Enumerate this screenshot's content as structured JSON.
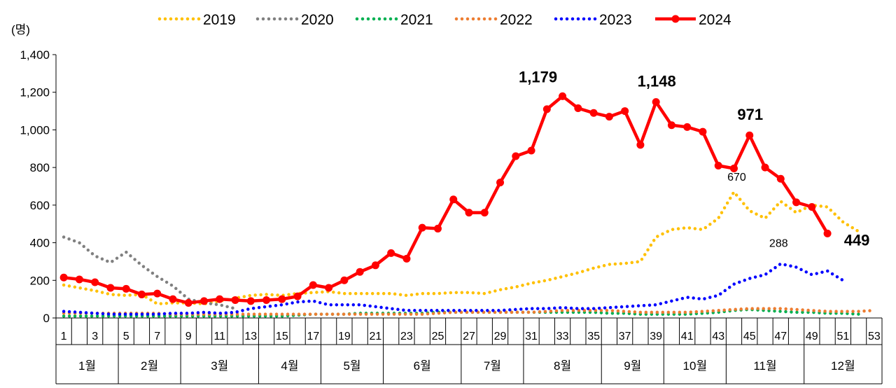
{
  "chart_data": {
    "type": "line",
    "ylabel": "(명)",
    "ylim": [
      0,
      1400
    ],
    "yticks": [
      "0",
      "200",
      "400",
      "600",
      "800",
      "1,000",
      "1,200",
      "1,400"
    ],
    "ytick_values": [
      0,
      200,
      400,
      600,
      800,
      1000,
      1200,
      1400
    ],
    "x": [
      1,
      2,
      3,
      4,
      5,
      6,
      7,
      8,
      9,
      10,
      11,
      12,
      13,
      14,
      15,
      16,
      17,
      18,
      19,
      20,
      21,
      22,
      23,
      24,
      25,
      26,
      27,
      28,
      29,
      30,
      31,
      32,
      33,
      34,
      35,
      36,
      37,
      38,
      39,
      40,
      41,
      42,
      43,
      44,
      45,
      46,
      47,
      48,
      49,
      50,
      51,
      52,
      53
    ],
    "xtick_labels": [
      "1",
      "3",
      "5",
      "7",
      "9",
      "11",
      "13",
      "15",
      "17",
      "19",
      "21",
      "23",
      "25",
      "27",
      "29",
      "31",
      "33",
      "35",
      "37",
      "39",
      "41",
      "43",
      "45",
      "47",
      "49",
      "51",
      "53"
    ],
    "xtick_values": [
      1,
      3,
      5,
      7,
      9,
      11,
      13,
      15,
      17,
      19,
      21,
      23,
      25,
      27,
      29,
      31,
      33,
      35,
      37,
      39,
      41,
      43,
      45,
      47,
      49,
      51,
      53
    ],
    "months": [
      {
        "label": "1월",
        "from": 1,
        "to": 4
      },
      {
        "label": "2월",
        "from": 5,
        "to": 8
      },
      {
        "label": "3월",
        "from": 9,
        "to": 13
      },
      {
        "label": "4월",
        "from": 14,
        "to": 17
      },
      {
        "label": "5월",
        "from": 18,
        "to": 21
      },
      {
        "label": "6월",
        "from": 22,
        "to": 26
      },
      {
        "label": "7월",
        "from": 27,
        "to": 30
      },
      {
        "label": "8월",
        "from": 31,
        "to": 35
      },
      {
        "label": "9월",
        "from": 36,
        "to": 39
      },
      {
        "label": "10월",
        "from": 40,
        "to": 43
      },
      {
        "label": "11월",
        "from": 44,
        "to": 48
      },
      {
        "label": "12월",
        "from": 49,
        "to": 53
      }
    ],
    "legend_position": "top",
    "grid": false,
    "series": [
      {
        "name": "2019",
        "color": "#FFC000",
        "style": "dotted",
        "values": [
          175,
          160,
          145,
          125,
          120,
          125,
          75,
          80,
          80,
          75,
          90,
          105,
          120,
          125,
          120,
          130,
          135,
          140,
          130,
          130,
          130,
          130,
          120,
          130,
          130,
          135,
          135,
          130,
          150,
          165,
          185,
          200,
          220,
          240,
          265,
          285,
          290,
          300,
          430,
          470,
          480,
          470,
          530,
          670,
          570,
          530,
          620,
          560,
          600,
          590,
          510,
          460,
          null
        ]
      },
      {
        "name": "2020",
        "color": "#808080",
        "style": "dotted",
        "values": [
          430,
          400,
          330,
          295,
          350,
          280,
          220,
          170,
          100,
          80,
          70,
          50,
          null,
          null,
          null,
          null,
          null,
          null,
          null,
          null,
          null,
          null,
          null,
          null,
          null,
          null,
          null,
          null,
          null,
          null,
          null,
          null,
          null,
          null,
          null,
          null,
          null,
          null,
          null,
          null,
          null,
          null,
          null,
          null,
          null,
          null,
          null,
          null,
          null,
          null,
          null,
          null,
          null
        ]
      },
      {
        "name": "2021",
        "color": "#00B050",
        "style": "dotted",
        "values": [
          10,
          10,
          10,
          10,
          10,
          10,
          10,
          10,
          10,
          10,
          10,
          10,
          10,
          10,
          10,
          15,
          20,
          20,
          20,
          25,
          25,
          25,
          25,
          25,
          30,
          30,
          30,
          30,
          30,
          30,
          30,
          30,
          30,
          30,
          30,
          25,
          25,
          20,
          20,
          20,
          20,
          25,
          30,
          40,
          45,
          40,
          35,
          30,
          30,
          25,
          25,
          20,
          null
        ]
      },
      {
        "name": "2022",
        "color": "#ED7D31",
        "style": "dotted",
        "values": [
          25,
          25,
          25,
          25,
          25,
          25,
          25,
          20,
          20,
          20,
          20,
          20,
          20,
          20,
          20,
          20,
          20,
          20,
          20,
          20,
          20,
          20,
          20,
          20,
          25,
          30,
          30,
          30,
          30,
          30,
          30,
          35,
          40,
          40,
          40,
          40,
          35,
          30,
          30,
          30,
          30,
          35,
          40,
          45,
          50,
          50,
          50,
          45,
          40,
          35,
          35,
          35,
          40
        ]
      },
      {
        "name": "2023",
        "color": "#0000FF",
        "style": "dotted",
        "values": [
          35,
          30,
          25,
          20,
          20,
          20,
          20,
          25,
          25,
          30,
          25,
          30,
          50,
          60,
          70,
          85,
          90,
          70,
          70,
          70,
          60,
          50,
          40,
          40,
          40,
          40,
          40,
          40,
          40,
          45,
          50,
          50,
          55,
          50,
          50,
          55,
          60,
          65,
          70,
          90,
          110,
          100,
          120,
          180,
          210,
          230,
          288,
          270,
          230,
          250,
          200,
          null,
          null
        ]
      },
      {
        "name": "2024",
        "color": "#FF0000",
        "style": "solid",
        "values": [
          215,
          205,
          190,
          160,
          155,
          125,
          130,
          100,
          80,
          90,
          100,
          95,
          90,
          95,
          100,
          115,
          175,
          160,
          200,
          245,
          280,
          345,
          315,
          480,
          475,
          630,
          560,
          560,
          720,
          860,
          890,
          1110,
          1179,
          1115,
          1090,
          1070,
          1100,
          920,
          1148,
          1025,
          1015,
          990,
          810,
          795,
          971,
          800,
          740,
          615,
          590,
          449,
          null,
          null,
          null
        ]
      }
    ],
    "annotations": [
      {
        "text": "1,179",
        "series": "2024",
        "x": 33,
        "bold": true
      },
      {
        "text": "1,148",
        "series": "2024",
        "x": 39,
        "bold": true
      },
      {
        "text": "971",
        "series": "2024",
        "x": 45,
        "bold": true
      },
      {
        "text": "449",
        "series": "2024",
        "x": 50,
        "bold": true
      },
      {
        "text": "670",
        "series": "2019",
        "x": 44,
        "bold": false
      },
      {
        "text": "288",
        "series": "2023",
        "x": 47,
        "bold": false
      }
    ]
  }
}
